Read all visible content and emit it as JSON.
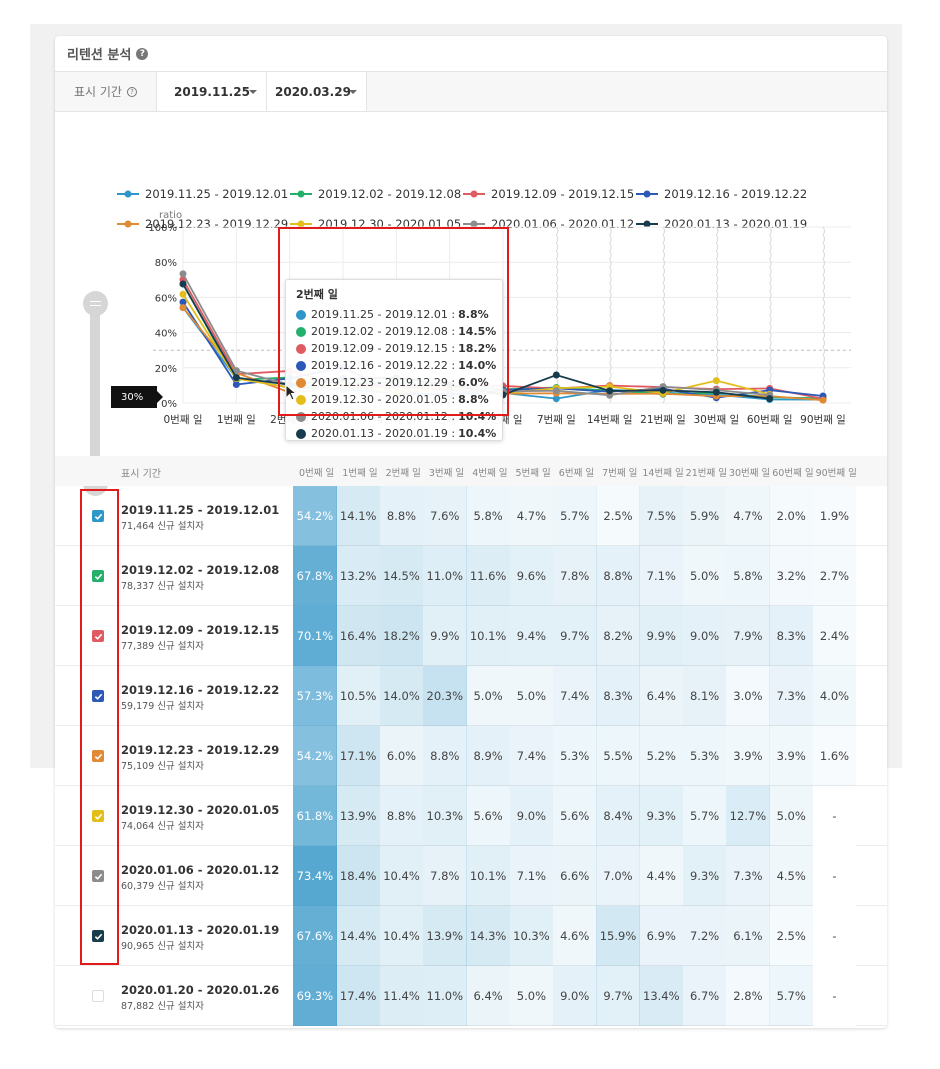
{
  "card": {
    "title": "리텐션 분석",
    "help_glyph": "?"
  },
  "filter": {
    "label": "표시 기간",
    "help_glyph": "?",
    "start_date": "2019.11.25",
    "end_date": "2020.03.29"
  },
  "chart": {
    "legend": [
      "2019.11.25 - 2019.12.01",
      "2019.12.02 - 2019.12.08",
      "2019.12.09 - 2019.12.15",
      "2019.12.16 - 2019.12.22",
      "2019.12.23 - 2019.12.29",
      "2019.12.30 - 2020.01.05",
      "2020.01.06 - 2020.01.12",
      "2020.01.13 - 2020.01.19"
    ],
    "threshold_label": "30%",
    "tooltip": {
      "title": "2번째 일",
      "rows": [
        {
          "label": "2019.11.25 - 2019.12.01 :",
          "value": "8.8%"
        },
        {
          "label": "2019.12.02 - 2019.12.08 :",
          "value": "14.5%"
        },
        {
          "label": "2019.12.09 - 2019.12.15 :",
          "value": "18.2%"
        },
        {
          "label": "2019.12.16 - 2019.12.22 :",
          "value": "14.0%"
        },
        {
          "label": "2019.12.23 - 2019.12.29 :",
          "value": "6.0%"
        },
        {
          "label": "2019.12.30 - 2020.01.05 :",
          "value": "8.8%"
        },
        {
          "label": "2020.01.06 - 2020.01.12 :",
          "value": "10.4%"
        },
        {
          "label": "2020.01.13 - 2020.01.19 :",
          "value": "10.4%"
        }
      ]
    }
  },
  "chart_data": {
    "type": "line",
    "ylabel": "ratio",
    "ylim": [
      0,
      100
    ],
    "yticks": [
      "0%",
      "20%",
      "40%",
      "60%",
      "80%",
      "100%"
    ],
    "threshold": 30,
    "categories": [
      "0번째 일",
      "1번째 일",
      "2번째 일",
      "3번째 일",
      "4번째 일",
      "5번째 일",
      "6번째 일",
      "7번째 일",
      "14번째 일",
      "21번째 일",
      "30번째 일",
      "60번째 일",
      "90번째 일"
    ],
    "legend_position": "top",
    "grid": true,
    "series": [
      {
        "name": "2019.11.25 - 2019.12.01",
        "color": "#2e97c9",
        "values": [
          54.2,
          14.1,
          8.8,
          7.6,
          5.8,
          4.7,
          5.7,
          2.5,
          7.5,
          5.9,
          4.7,
          2.0,
          1.9
        ]
      },
      {
        "name": "2019.12.02 - 2019.12.08",
        "color": "#24b06b",
        "values": [
          67.8,
          13.2,
          14.5,
          11.0,
          11.6,
          9.6,
          7.8,
          8.8,
          7.1,
          5.0,
          5.8,
          3.2,
          2.7
        ]
      },
      {
        "name": "2019.12.09 - 2019.12.15",
        "color": "#e05a61",
        "values": [
          70.1,
          16.4,
          18.2,
          9.9,
          10.1,
          9.4,
          9.7,
          8.2,
          9.9,
          9.0,
          7.9,
          8.3,
          2.4
        ]
      },
      {
        "name": "2019.12.16 - 2019.12.22",
        "color": "#2c58b7",
        "values": [
          57.3,
          10.5,
          14.0,
          20.3,
          5.0,
          5.0,
          7.4,
          8.3,
          6.4,
          8.1,
          3.0,
          7.3,
          4.0
        ]
      },
      {
        "name": "2019.12.23 - 2019.12.29",
        "color": "#e08a35",
        "values": [
          54.2,
          17.1,
          6.0,
          8.8,
          8.9,
          7.4,
          5.3,
          5.5,
          5.2,
          5.3,
          3.9,
          3.9,
          1.6
        ]
      },
      {
        "name": "2019.12.30 - 2020.01.05",
        "color": "#e3be1a",
        "values": [
          61.8,
          13.9,
          8.8,
          10.3,
          5.6,
          9.0,
          5.6,
          8.4,
          9.3,
          5.7,
          12.7,
          5.0,
          null
        ]
      },
      {
        "name": "2020.01.06 - 2020.01.12",
        "color": "#8c8c8c",
        "values": [
          73.4,
          18.4,
          10.4,
          7.8,
          10.1,
          7.1,
          6.6,
          7.0,
          4.4,
          9.3,
          7.3,
          4.5,
          null
        ]
      },
      {
        "name": "2020.01.13 - 2020.01.19",
        "color": "#163c4d",
        "values": [
          67.6,
          14.4,
          10.4,
          13.9,
          14.3,
          10.3,
          4.6,
          15.9,
          6.9,
          7.2,
          6.1,
          2.5,
          null
        ]
      }
    ]
  },
  "table": {
    "period_header": "표시 기간",
    "day_headers": [
      "0번째 일",
      "1번째 일",
      "2번째 일",
      "3번째 일",
      "4번째 일",
      "5번째 일",
      "6번째 일",
      "7번째 일",
      "14번째 일",
      "21번째 일",
      "30번째 일",
      "60번째 일",
      "90번째 일"
    ],
    "rows": [
      {
        "period": "2019.11.25 - 2019.12.01",
        "installs": "71,464 신규 설치자",
        "checked": true,
        "color": "#2e97c9",
        "cells": [
          "54.2%",
          "14.1%",
          "8.8%",
          "7.6%",
          "5.8%",
          "4.7%",
          "5.7%",
          "2.5%",
          "7.5%",
          "5.9%",
          "4.7%",
          "2.0%",
          "1.9%"
        ]
      },
      {
        "period": "2019.12.02 - 2019.12.08",
        "installs": "78,337 신규 설치자",
        "checked": true,
        "color": "#24b06b",
        "cells": [
          "67.8%",
          "13.2%",
          "14.5%",
          "11.0%",
          "11.6%",
          "9.6%",
          "7.8%",
          "8.8%",
          "7.1%",
          "5.0%",
          "5.8%",
          "3.2%",
          "2.7%"
        ]
      },
      {
        "period": "2019.12.09 - 2019.12.15",
        "installs": "77,389 신규 설치자",
        "checked": true,
        "color": "#e05a61",
        "cells": [
          "70.1%",
          "16.4%",
          "18.2%",
          "9.9%",
          "10.1%",
          "9.4%",
          "9.7%",
          "8.2%",
          "9.9%",
          "9.0%",
          "7.9%",
          "8.3%",
          "2.4%"
        ]
      },
      {
        "period": "2019.12.16 - 2019.12.22",
        "installs": "59,179 신규 설치자",
        "checked": true,
        "color": "#2c58b7",
        "cells": [
          "57.3%",
          "10.5%",
          "14.0%",
          "20.3%",
          "5.0%",
          "5.0%",
          "7.4%",
          "8.3%",
          "6.4%",
          "8.1%",
          "3.0%",
          "7.3%",
          "4.0%"
        ]
      },
      {
        "period": "2019.12.23 - 2019.12.29",
        "installs": "75,109 신규 설치자",
        "checked": true,
        "color": "#e08a35",
        "cells": [
          "54.2%",
          "17.1%",
          "6.0%",
          "8.8%",
          "8.9%",
          "7.4%",
          "5.3%",
          "5.5%",
          "5.2%",
          "5.3%",
          "3.9%",
          "3.9%",
          "1.6%"
        ]
      },
      {
        "period": "2019.12.30 - 2020.01.05",
        "installs": "74,064 신규 설치자",
        "checked": true,
        "color": "#e3be1a",
        "cells": [
          "61.8%",
          "13.9%",
          "8.8%",
          "10.3%",
          "5.6%",
          "9.0%",
          "5.6%",
          "8.4%",
          "9.3%",
          "5.7%",
          "12.7%",
          "5.0%",
          "-"
        ]
      },
      {
        "period": "2020.01.06 - 2020.01.12",
        "installs": "60,379 신규 설치자",
        "checked": true,
        "color": "#8c8c8c",
        "cells": [
          "73.4%",
          "18.4%",
          "10.4%",
          "7.8%",
          "10.1%",
          "7.1%",
          "6.6%",
          "7.0%",
          "4.4%",
          "9.3%",
          "7.3%",
          "4.5%",
          "-"
        ]
      },
      {
        "period": "2020.01.13 - 2020.01.19",
        "installs": "90,965 신규 설치자",
        "checked": true,
        "color": "#163c4d",
        "cells": [
          "67.6%",
          "14.4%",
          "10.4%",
          "13.9%",
          "14.3%",
          "10.3%",
          "4.6%",
          "15.9%",
          "6.9%",
          "7.2%",
          "6.1%",
          "2.5%",
          "-"
        ]
      },
      {
        "period": "2020.01.20 - 2020.01.26",
        "installs": "87,882 신규 설치자",
        "checked": false,
        "color": "#cccccc",
        "cells": [
          "69.3%",
          "17.4%",
          "11.4%",
          "11.0%",
          "6.4%",
          "5.0%",
          "9.0%",
          "9.7%",
          "13.4%",
          "6.7%",
          "2.8%",
          "5.7%",
          "-"
        ]
      }
    ]
  }
}
